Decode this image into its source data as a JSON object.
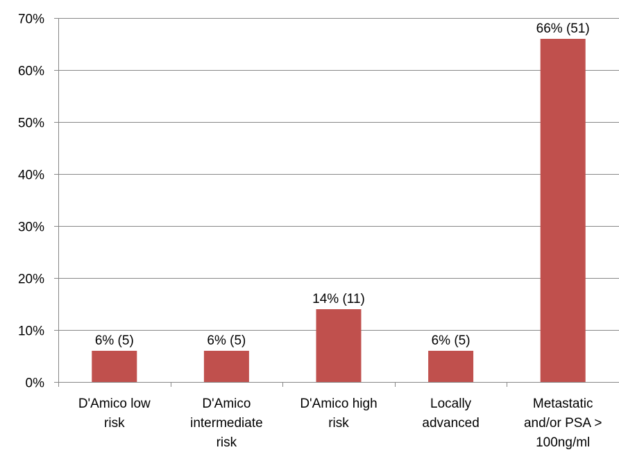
{
  "chart_data": {
    "type": "bar",
    "title": "",
    "xlabel": "",
    "ylabel": "",
    "ylim": [
      0,
      70
    ],
    "y_ticks": [
      "0%",
      "10%",
      "20%",
      "30%",
      "40%",
      "50%",
      "60%",
      "70%"
    ],
    "grid": true,
    "legend": "none",
    "bar_color": "#C0504D",
    "categories": [
      [
        "D'Amico low",
        "risk"
      ],
      [
        "D'Amico",
        "intermediate",
        "risk"
      ],
      [
        "D'Amico high",
        "risk"
      ],
      [
        "Locally",
        "advanced"
      ],
      [
        "Metastatic",
        "and/or PSA >",
        "100ng/ml"
      ]
    ],
    "values": [
      6,
      6,
      14,
      6,
      66
    ],
    "counts": [
      5,
      5,
      11,
      5,
      51
    ],
    "data_labels": [
      "6% (5)",
      "6% (5)",
      "14% (11)",
      "6% (5)",
      "66% (51)"
    ]
  }
}
